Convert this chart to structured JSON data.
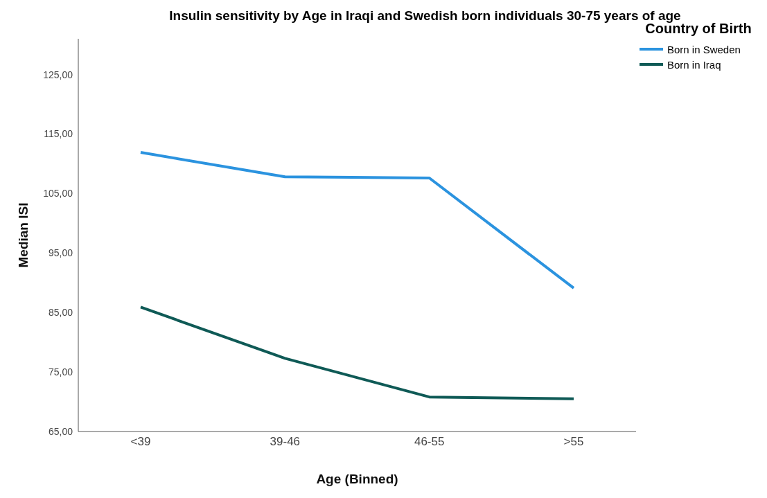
{
  "chart_data": {
    "type": "line",
    "title": "Insulin sensitivity by Age in Iraqi and Swedish born individuals 30-75 years of age",
    "xlabel": "Age (Binned)",
    "ylabel": "Median ISI",
    "legend_title": "Country of Birth",
    "categories": [
      "<39",
      "39-46",
      "46-55",
      ">55"
    ],
    "series": [
      {
        "name": "Born in Sweden",
        "color": "#2b93df",
        "values": [
          111.9,
          107.8,
          107.6,
          89.1
        ]
      },
      {
        "name": "Born in Iraq",
        "color": "#0f5a56",
        "values": [
          85.9,
          77.3,
          70.8,
          70.5
        ]
      }
    ],
    "ylim": [
      65,
      131
    ],
    "yticks": [
      {
        "value": 65,
        "label": "65,00"
      },
      {
        "value": 75,
        "label": "75,00"
      },
      {
        "value": 85,
        "label": "85,00"
      },
      {
        "value": 95,
        "label": "95,00"
      },
      {
        "value": 105,
        "label": "105,00"
      },
      {
        "value": 115,
        "label": "115,00"
      },
      {
        "value": 125,
        "label": "125,00"
      }
    ],
    "grid": false,
    "legend": "top right",
    "marker": "none",
    "line_style": "solid"
  }
}
